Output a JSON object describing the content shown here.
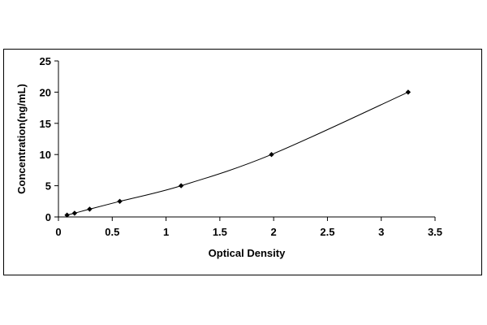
{
  "chart_data": {
    "type": "scatter",
    "title": "",
    "xlabel": "Optical Density",
    "ylabel": "Concentration(ng/mL)",
    "xlim": [
      0,
      3.5
    ],
    "ylim": [
      0,
      25
    ],
    "x_ticks": [
      "0",
      "0.5",
      "1",
      "1.5",
      "2",
      "2.5",
      "3",
      "3.5"
    ],
    "y_ticks": [
      "0",
      "5",
      "10",
      "15",
      "20",
      "25"
    ],
    "grid": false,
    "legend": "none",
    "series": [
      {
        "x": [
          0.08,
          0.15,
          0.29,
          0.57,
          1.14,
          1.98,
          3.25
        ],
        "y": [
          0.3,
          0.6,
          1.25,
          2.5,
          5,
          10,
          20
        ],
        "marker": "diamond",
        "line": "smooth",
        "color": "#000000"
      }
    ]
  }
}
